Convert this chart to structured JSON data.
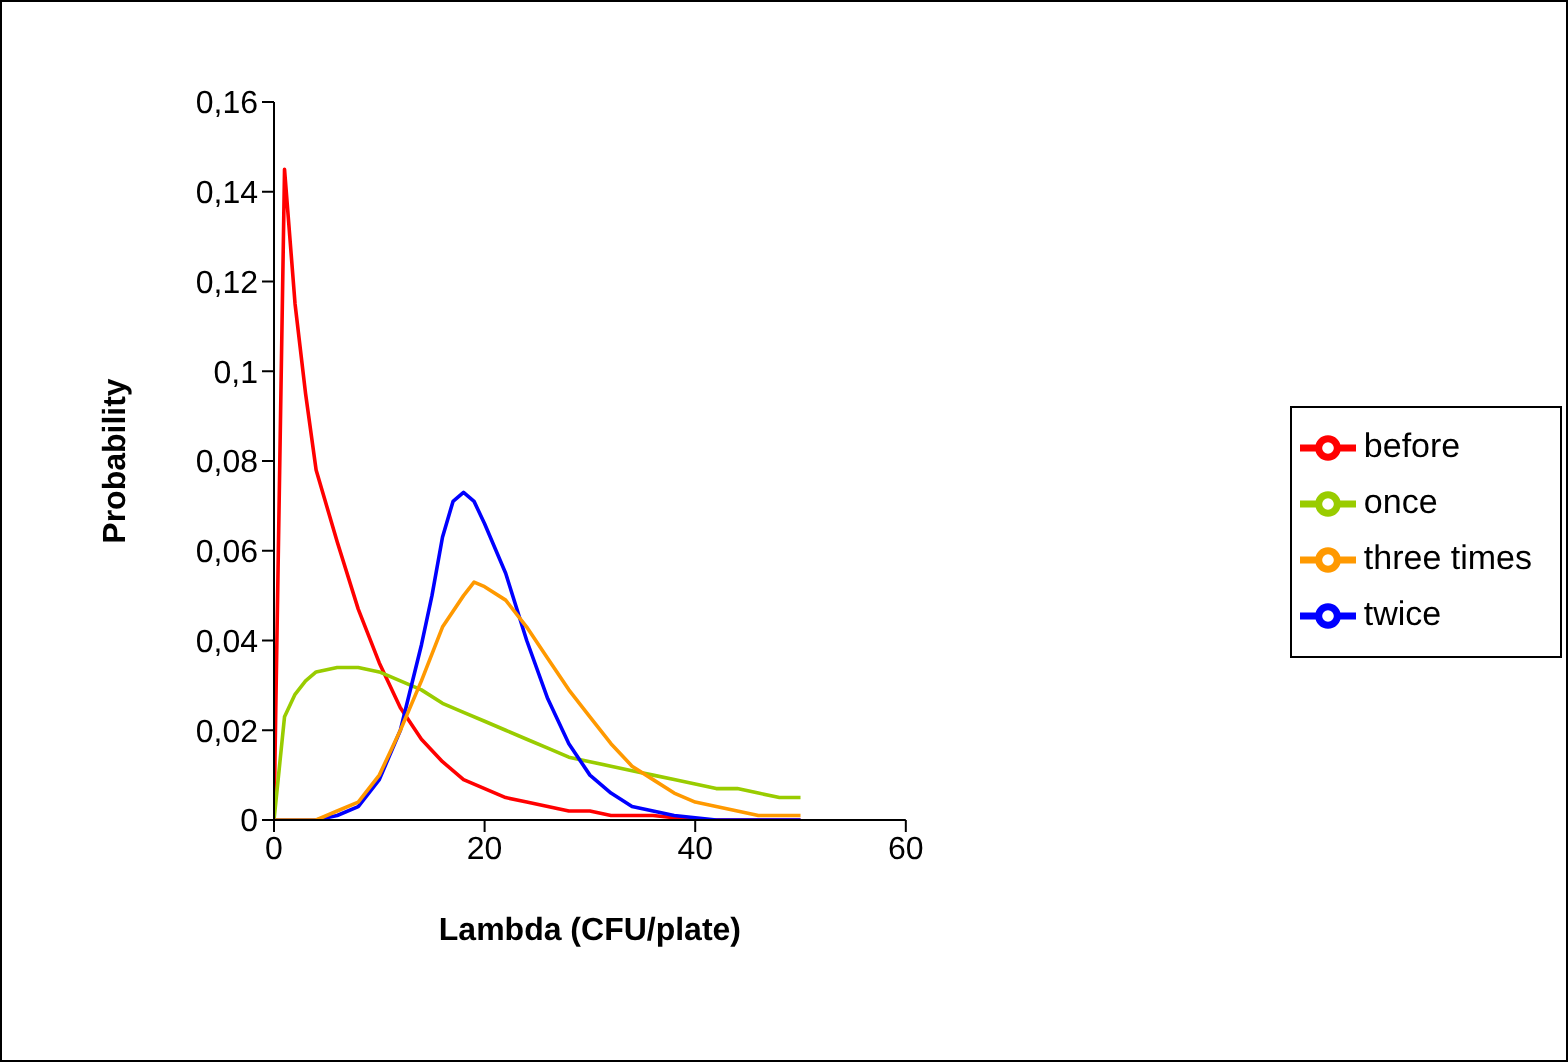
{
  "chart_data": {
    "type": "line",
    "xlabel": "Lambda (CFU/plate)",
    "ylabel": "Probability",
    "xlim": [
      0,
      60
    ],
    "xticks": [
      0,
      20,
      40,
      60
    ],
    "ylim": [
      0,
      0.16
    ],
    "yticks": [
      0,
      {
        "value": 0.02,
        "label": "0,02"
      },
      {
        "value": 0.04,
        "label": "0,04"
      },
      {
        "value": 0.06,
        "label": "0,06"
      },
      {
        "value": 0.08,
        "label": "0,08"
      },
      {
        "value": 0.1,
        "label": "0,1"
      },
      {
        "value": 0.12,
        "label": "0,12"
      },
      {
        "value": 0.14,
        "label": "0,14"
      },
      {
        "value": 0.16,
        "label": "0,16"
      }
    ],
    "grid": false,
    "legend": "right",
    "marker": "none",
    "line_style": "solid",
    "series": [
      {
        "name": "before",
        "color": "#ff0000",
        "x": [
          0,
          1,
          2,
          3,
          4,
          6,
          8,
          10,
          12,
          14,
          16,
          18,
          20,
          22,
          24,
          26,
          28,
          30,
          32,
          34,
          36,
          38,
          40,
          50
        ],
        "values": [
          0,
          0.145,
          0.115,
          0.095,
          0.078,
          0.062,
          0.047,
          0.035,
          0.025,
          0.018,
          0.013,
          0.009,
          0.007,
          0.005,
          0.004,
          0.003,
          0.002,
          0.002,
          0.001,
          0.001,
          0.001,
          0.0005,
          0,
          0
        ]
      },
      {
        "name": "once",
        "color": "#99cc00",
        "x": [
          0,
          1,
          2,
          3,
          4,
          6,
          8,
          10,
          12,
          14,
          16,
          18,
          20,
          22,
          24,
          26,
          28,
          30,
          32,
          34,
          36,
          38,
          40,
          42,
          44,
          46,
          48,
          50
        ],
        "values": [
          0,
          0.023,
          0.028,
          0.031,
          0.033,
          0.034,
          0.034,
          0.033,
          0.031,
          0.029,
          0.026,
          0.024,
          0.022,
          0.02,
          0.018,
          0.016,
          0.014,
          0.013,
          0.012,
          0.011,
          0.01,
          0.009,
          0.008,
          0.007,
          0.007,
          0.006,
          0.005,
          0.005
        ]
      },
      {
        "name": "twice",
        "color": "#0000ff",
        "x": [
          0,
          4,
          6,
          8,
          10,
          12,
          14,
          15,
          16,
          17,
          18,
          19,
          20,
          22,
          24,
          26,
          28,
          30,
          32,
          34,
          36,
          38,
          40,
          42,
          50
        ],
        "values": [
          0,
          0,
          0.001,
          0.003,
          0.009,
          0.02,
          0.039,
          0.05,
          0.063,
          0.071,
          0.073,
          0.071,
          0.066,
          0.055,
          0.04,
          0.027,
          0.017,
          0.01,
          0.006,
          0.003,
          0.002,
          0.001,
          0.0005,
          0,
          0
        ]
      },
      {
        "name": "three times",
        "color": "#ff9900",
        "x": [
          0,
          4,
          6,
          8,
          10,
          12,
          14,
          16,
          18,
          19,
          20,
          22,
          24,
          26,
          28,
          30,
          32,
          34,
          36,
          38,
          40,
          42,
          44,
          46,
          48,
          50
        ],
        "values": [
          0,
          0,
          0.002,
          0.004,
          0.01,
          0.02,
          0.031,
          0.043,
          0.05,
          0.053,
          0.052,
          0.049,
          0.043,
          0.036,
          0.029,
          0.023,
          0.017,
          0.012,
          0.009,
          0.006,
          0.004,
          0.003,
          0.002,
          0.001,
          0.001,
          0.001
        ]
      }
    ]
  }
}
